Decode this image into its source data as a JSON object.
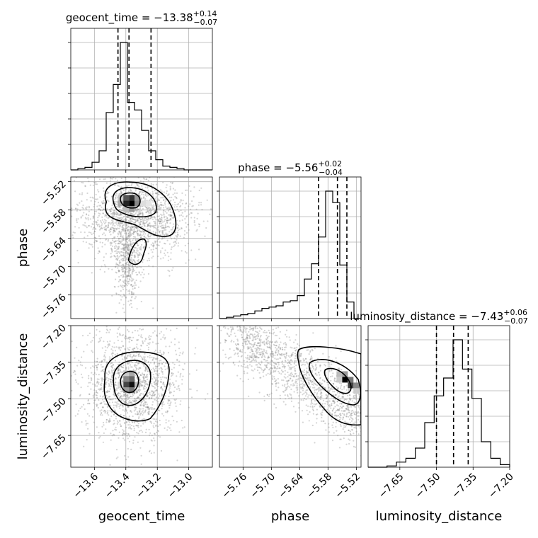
{
  "chart_data": {
    "type": "corner",
    "parameters": [
      "geocent_time",
      "phase",
      "luminosity_distance"
    ],
    "titles": [
      {
        "param": "geocent_time",
        "prefix": "geocent_time = ",
        "median": "−13.38",
        "plus": "+0.14",
        "minus": "−0.07"
      },
      {
        "param": "phase",
        "prefix": "phase = ",
        "median": "−5.56",
        "plus": "+0.02",
        "minus": "−0.04"
      },
      {
        "param": "luminosity_distance",
        "prefix": "luminosity_distance = ",
        "median": "−7.43",
        "plus": "+0.06",
        "minus": "−0.07"
      }
    ],
    "axis_labels": {
      "x": [
        "geocent_time",
        "phase",
        "luminosity_distance"
      ],
      "y": [
        "phase",
        "luminosity_distance"
      ]
    },
    "ranges": {
      "geocent_time": [
        -13.75,
        -12.85
      ],
      "phase": [
        -5.81,
        -5.51
      ],
      "luminosity_distance": [
        -7.78,
        -7.2
      ]
    },
    "ticks": {
      "geocent_time": {
        "values": [
          -13.6,
          -13.4,
          -13.2,
          -13.0
        ],
        "labels": [
          "−13.6",
          "−13.4",
          "−13.2",
          "−13.0"
        ]
      },
      "phase": {
        "values": [
          -5.76,
          -5.7,
          -5.64,
          -5.58,
          -5.52
        ],
        "labels": [
          "−5.76",
          "−5.70",
          "−5.64",
          "−5.58",
          "−5.52"
        ]
      },
      "luminosity_distance": {
        "values": [
          -7.65,
          -7.5,
          -7.35,
          -7.2
        ],
        "labels": [
          "−7.65",
          "−7.50",
          "−7.35",
          "−7.20"
        ]
      }
    },
    "histograms": [
      {
        "param": "geocent_time",
        "values": [
          0.0,
          0.01,
          0.02,
          0.06,
          0.15,
          0.45,
          0.67,
          1.0,
          0.53,
          0.47,
          0.31,
          0.15,
          0.08,
          0.03,
          0.02,
          0.01,
          0.0,
          0.0,
          0.0,
          0.0
        ],
        "quantiles": [
          -13.45,
          -13.38,
          -13.24
        ]
      },
      {
        "param": "phase",
        "values": [
          0.0,
          0.01,
          0.02,
          0.03,
          0.04,
          0.06,
          0.08,
          0.09,
          0.1,
          0.13,
          0.14,
          0.18,
          0.31,
          0.43,
          0.64,
          1.0,
          0.91,
          0.42,
          0.13,
          0.0
        ],
        "quantiles": [
          -5.6,
          -5.56,
          -5.54
        ]
      },
      {
        "param": "luminosity_distance",
        "values": [
          0.0,
          0.0,
          0.01,
          0.04,
          0.07,
          0.15,
          0.35,
          0.56,
          0.7,
          1.0,
          0.77,
          0.54,
          0.2,
          0.07,
          0.02
        ],
        "quantiles": [
          -7.5,
          -7.43,
          -7.37
        ]
      }
    ],
    "scatter_2d": [
      {
        "x": "geocent_time",
        "y": "phase",
        "center": [
          -13.38,
          -5.56
        ]
      },
      {
        "x": "geocent_time",
        "y": "luminosity_distance",
        "center": [
          -13.38,
          -7.43
        ]
      },
      {
        "x": "phase",
        "y": "luminosity_distance",
        "center": [
          -5.55,
          -7.41
        ]
      }
    ],
    "grid": true
  }
}
